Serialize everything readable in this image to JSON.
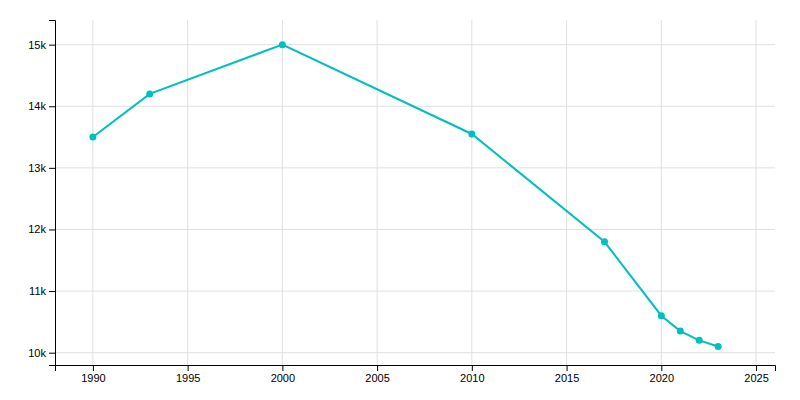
{
  "chart_data": {
    "type": "line",
    "x": [
      1990,
      1993,
      2000,
      2010,
      2017,
      2020,
      2021,
      2022,
      2023
    ],
    "values": [
      13500,
      14200,
      15000,
      13550,
      11800,
      10600,
      10350,
      10200,
      10100
    ],
    "color": "#00BFBF",
    "marker": "circle",
    "xlim": [
      1988,
      2026
    ],
    "ylim": [
      9800,
      15400
    ],
    "xticks": [
      1990,
      1995,
      2000,
      2005,
      2010,
      2015,
      2020,
      2025
    ],
    "yticks": [
      {
        "value": 10000,
        "label": "10k"
      },
      {
        "value": 11000,
        "label": "11k"
      },
      {
        "value": 12000,
        "label": "12k"
      },
      {
        "value": 13000,
        "label": "13k"
      },
      {
        "value": 14000,
        "label": "14k"
      },
      {
        "value": 15000,
        "label": "15k"
      }
    ],
    "grid": true
  }
}
